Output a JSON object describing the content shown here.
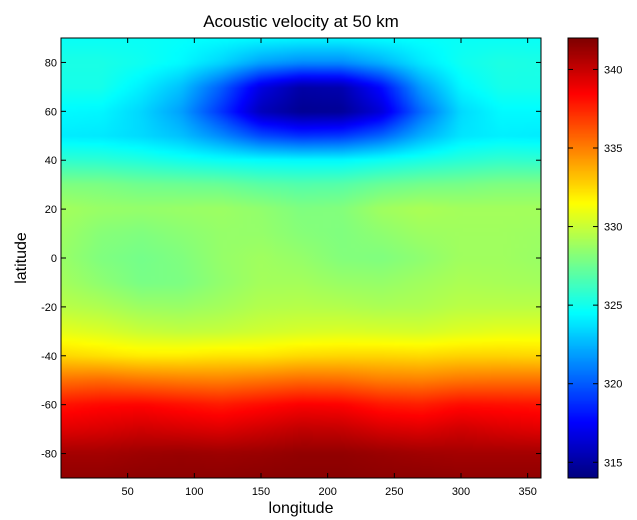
{
  "chart_data": {
    "type": "heatmap",
    "title": "Acoustic velocity at 50 km",
    "xlabel": "longitude",
    "ylabel": "latitude",
    "xlim": [
      0,
      360
    ],
    "ylim": [
      -90,
      90
    ],
    "x_ticks": [
      50,
      100,
      150,
      200,
      250,
      300,
      350
    ],
    "y_ticks": [
      80,
      60,
      40,
      20,
      0,
      -20,
      -40,
      -60,
      -80
    ],
    "colormap": "jet",
    "colorbar": {
      "range": [
        314,
        342
      ],
      "ticks": [
        340,
        335,
        330,
        325,
        320,
        315
      ]
    },
    "field": {
      "latitudes": [
        -90,
        -80,
        -70,
        -60,
        -50,
        -40,
        -30,
        -20,
        -10,
        0,
        10,
        20,
        30,
        40,
        50,
        60,
        70,
        80,
        90
      ],
      "longitudes": [
        0,
        30,
        60,
        90,
        120,
        150,
        180,
        210,
        240,
        270,
        300,
        330,
        360
      ],
      "values": [
        [
          341.5,
          341.5,
          341.6,
          341.6,
          341.6,
          341.7,
          341.7,
          341.7,
          341.6,
          341.6,
          341.5,
          341.5,
          341.5
        ],
        [
          341.0,
          341.0,
          341.2,
          341.3,
          341.2,
          341.3,
          341.5,
          341.5,
          341.3,
          341.1,
          341.0,
          341.0,
          341.0
        ],
        [
          339.3,
          339.5,
          339.8,
          339.6,
          339.4,
          339.8,
          340.2,
          340.1,
          339.6,
          339.4,
          339.8,
          339.5,
          339.3
        ],
        [
          338.0,
          338.3,
          338.4,
          338.1,
          337.8,
          338.2,
          338.6,
          338.5,
          337.9,
          337.7,
          338.2,
          338.1,
          338.0
        ],
        [
          335.4,
          335.6,
          335.3,
          335.1,
          335.0,
          335.3,
          335.6,
          335.5,
          335.1,
          335.0,
          335.3,
          335.4,
          335.4
        ],
        [
          332.6,
          332.3,
          332.0,
          332.0,
          332.2,
          332.2,
          332.5,
          332.6,
          332.6,
          332.5,
          332.7,
          332.7,
          332.6
        ],
        [
          330.8,
          330.5,
          330.0,
          329.8,
          329.9,
          330.2,
          330.4,
          330.5,
          330.4,
          330.3,
          330.6,
          330.8,
          330.8
        ],
        [
          329.6,
          329.3,
          328.8,
          328.7,
          329.0,
          329.4,
          329.5,
          329.4,
          329.2,
          329.3,
          329.6,
          329.6,
          329.6
        ],
        [
          329.0,
          328.4,
          327.8,
          327.9,
          328.5,
          329.0,
          329.0,
          328.7,
          328.6,
          328.9,
          329.2,
          329.1,
          329.0
        ],
        [
          328.7,
          328.0,
          327.7,
          328.0,
          328.6,
          328.9,
          328.6,
          328.1,
          328.0,
          328.4,
          328.9,
          328.9,
          328.7
        ],
        [
          328.8,
          328.2,
          328.0,
          328.3,
          328.6,
          328.6,
          328.2,
          328.0,
          328.4,
          328.8,
          328.9,
          328.9,
          328.8
        ],
        [
          329.0,
          328.7,
          328.6,
          328.7,
          328.8,
          328.5,
          328.0,
          328.1,
          328.9,
          329.2,
          329.0,
          329.0,
          329.0
        ],
        [
          328.0,
          327.9,
          327.6,
          327.5,
          327.4,
          327.0,
          326.8,
          326.9,
          327.4,
          327.7,
          327.8,
          328.0,
          328.0
        ],
        [
          325.8,
          325.7,
          325.4,
          325.0,
          324.7,
          324.5,
          324.4,
          324.4,
          324.8,
          325.2,
          325.6,
          325.9,
          325.8
        ],
        [
          324.0,
          323.9,
          323.5,
          322.8,
          321.3,
          319.5,
          318.8,
          319.0,
          320.2,
          322.3,
          323.8,
          324.1,
          324.0
        ],
        [
          324.4,
          324.3,
          323.4,
          321.9,
          318.9,
          315.6,
          314.5,
          314.6,
          316.4,
          320.4,
          323.5,
          324.4,
          324.4
        ],
        [
          325.1,
          325.1,
          324.1,
          322.8,
          320.1,
          316.7,
          315.1,
          315.3,
          317.7,
          321.8,
          324.3,
          325.1,
          325.1
        ],
        [
          325.2,
          325.2,
          324.9,
          324.4,
          323.4,
          322.0,
          321.4,
          321.4,
          322.4,
          323.9,
          324.9,
          325.3,
          325.2
        ],
        [
          324.7,
          324.7,
          324.7,
          324.6,
          324.5,
          324.4,
          324.3,
          324.3,
          324.5,
          324.6,
          324.7,
          324.7,
          324.7
        ]
      ]
    }
  }
}
